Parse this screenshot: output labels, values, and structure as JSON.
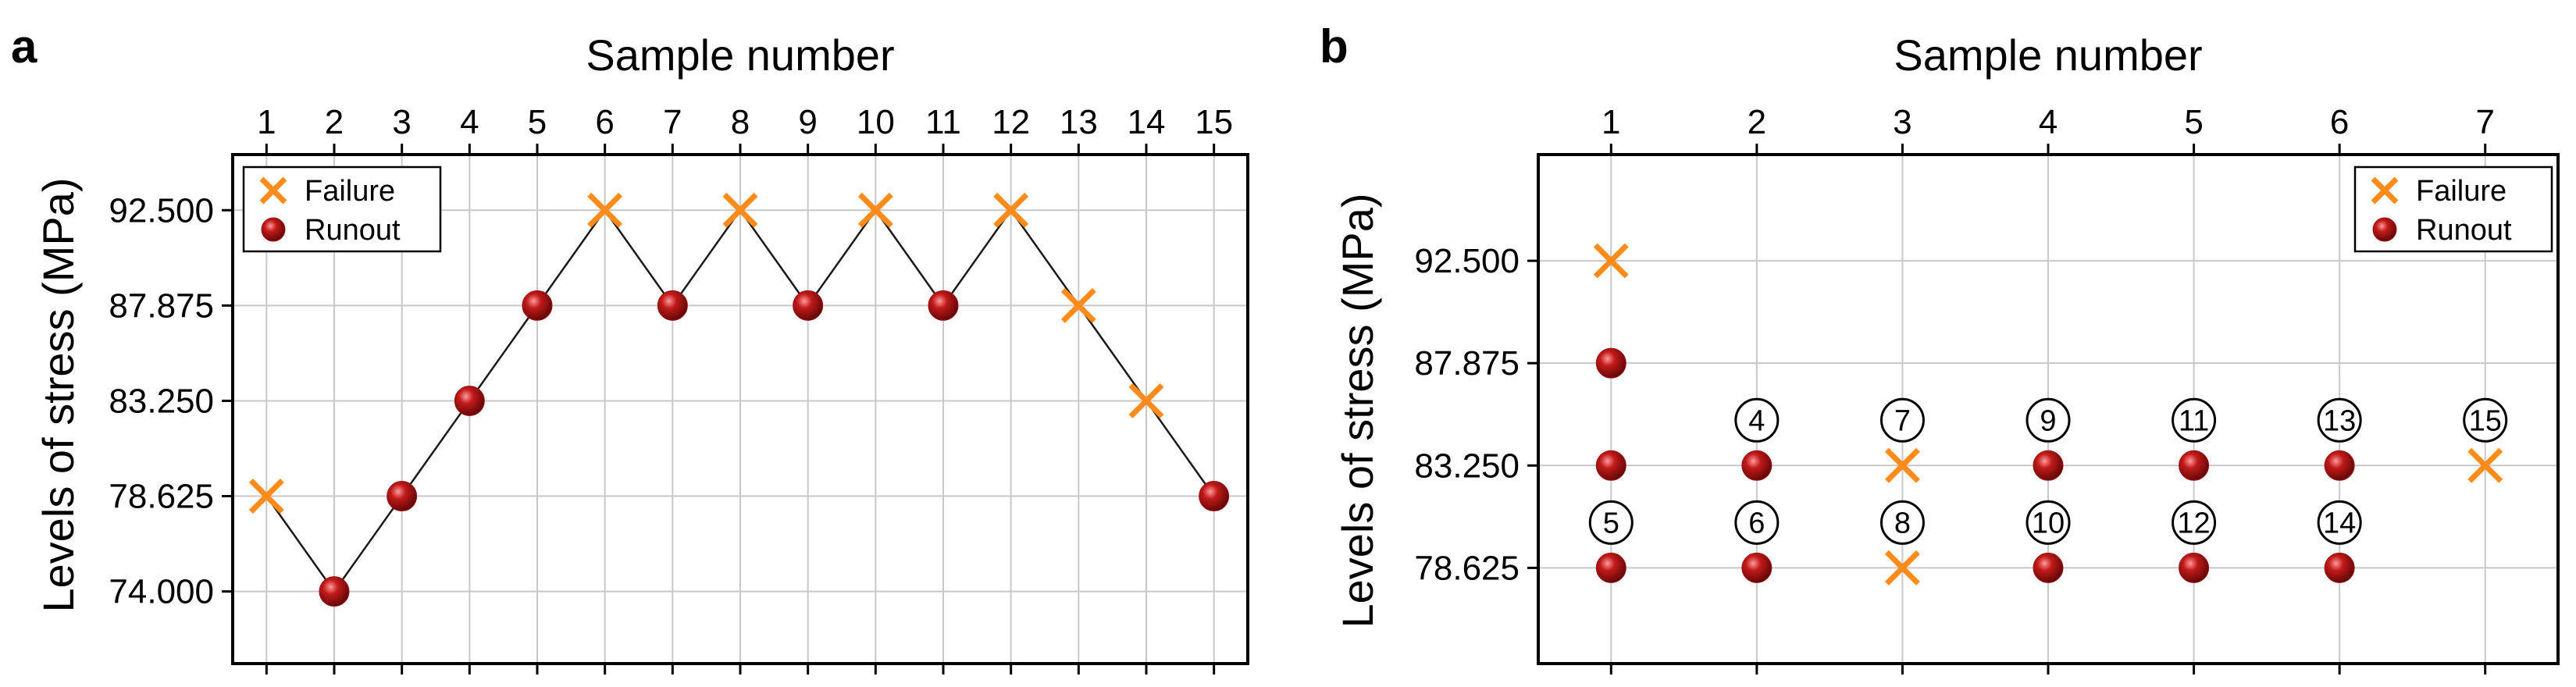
{
  "colors": {
    "failure": "#ff8c1a",
    "runout": "#9e0f0f",
    "runout_highlight": "#ff9a9a",
    "grid": "#c8c8c8",
    "line": "#1a1a1a"
  },
  "panels": [
    {
      "letter": "a"
    },
    {
      "letter": "b"
    }
  ],
  "chart_data": [
    {
      "type": "scatter",
      "panel": "a",
      "xlabel": "Sample number",
      "ylabel": "Levels of stress (MPa)",
      "x_ticks": [
        "1",
        "2",
        "3",
        "4",
        "5",
        "6",
        "7",
        "8",
        "9",
        "10",
        "11",
        "12",
        "13",
        "14",
        "15"
      ],
      "y_ticks": [
        "74.000",
        "78.625",
        "83.250",
        "87.875",
        "92.500"
      ],
      "y_tick_values": [
        74.0,
        78.625,
        83.25,
        87.875,
        92.5
      ],
      "xlim": [
        0.5,
        15.5
      ],
      "ylim": [
        70.5,
        95.2
      ],
      "grid": true,
      "connect_points": true,
      "legend_position": "top-left",
      "legend": [
        {
          "label": "Failure",
          "marker": "x"
        },
        {
          "label": "Runout",
          "marker": "sphere"
        }
      ],
      "points": [
        {
          "x": 1,
          "y": 78.625,
          "type": "failure"
        },
        {
          "x": 2,
          "y": 74.0,
          "type": "runout"
        },
        {
          "x": 3,
          "y": 78.625,
          "type": "runout"
        },
        {
          "x": 4,
          "y": 83.25,
          "type": "runout"
        },
        {
          "x": 5,
          "y": 87.875,
          "type": "runout"
        },
        {
          "x": 6,
          "y": 92.5,
          "type": "failure"
        },
        {
          "x": 7,
          "y": 87.875,
          "type": "runout"
        },
        {
          "x": 8,
          "y": 92.5,
          "type": "failure"
        },
        {
          "x": 9,
          "y": 87.875,
          "type": "runout"
        },
        {
          "x": 10,
          "y": 92.5,
          "type": "failure"
        },
        {
          "x": 11,
          "y": 87.875,
          "type": "runout"
        },
        {
          "x": 12,
          "y": 92.5,
          "type": "failure"
        },
        {
          "x": 13,
          "y": 87.875,
          "type": "failure"
        },
        {
          "x": 14,
          "y": 83.25,
          "type": "failure"
        },
        {
          "x": 15,
          "y": 78.625,
          "type": "runout"
        }
      ]
    },
    {
      "type": "scatter",
      "panel": "b",
      "xlabel": "Sample number",
      "ylabel": "Levels of stress (MPa)",
      "x_ticks": [
        "1",
        "2",
        "3",
        "4",
        "5",
        "6",
        "7"
      ],
      "y_ticks": [
        "78.625",
        "83.250",
        "87.875",
        "92.500"
      ],
      "y_tick_values": [
        78.625,
        83.25,
        87.875,
        92.5
      ],
      "xlim": [
        0.5,
        7.5
      ],
      "ylim": [
        74.3,
        97.3
      ],
      "grid": true,
      "connect_points": false,
      "legend_position": "top-right",
      "legend": [
        {
          "label": "Failure",
          "marker": "x"
        },
        {
          "label": "Runout",
          "marker": "sphere"
        }
      ],
      "points": [
        {
          "x": 1,
          "y": 92.5,
          "type": "failure"
        },
        {
          "x": 1,
          "y": 87.875,
          "type": "runout"
        },
        {
          "x": 1,
          "y": 83.25,
          "type": "runout"
        },
        {
          "x": 1,
          "y": 78.625,
          "type": "runout"
        },
        {
          "x": 2,
          "y": 83.25,
          "type": "runout"
        },
        {
          "x": 2,
          "y": 78.625,
          "type": "runout"
        },
        {
          "x": 3,
          "y": 83.25,
          "type": "failure"
        },
        {
          "x": 3,
          "y": 78.625,
          "type": "failure"
        },
        {
          "x": 4,
          "y": 83.25,
          "type": "runout"
        },
        {
          "x": 4,
          "y": 78.625,
          "type": "runout"
        },
        {
          "x": 5,
          "y": 83.25,
          "type": "runout"
        },
        {
          "x": 5,
          "y": 78.625,
          "type": "runout"
        },
        {
          "x": 6,
          "y": 83.25,
          "type": "runout"
        },
        {
          "x": 6,
          "y": 78.625,
          "type": "runout"
        },
        {
          "x": 7,
          "y": 83.25,
          "type": "failure"
        }
      ],
      "annotations": [
        {
          "x": 1,
          "y": 78.625,
          "text": "5"
        },
        {
          "x": 2,
          "y": 83.25,
          "text": "4"
        },
        {
          "x": 2,
          "y": 78.625,
          "text": "6"
        },
        {
          "x": 3,
          "y": 83.25,
          "text": "7"
        },
        {
          "x": 3,
          "y": 78.625,
          "text": "8"
        },
        {
          "x": 4,
          "y": 83.25,
          "text": "9"
        },
        {
          "x": 4,
          "y": 78.625,
          "text": "10"
        },
        {
          "x": 5,
          "y": 83.25,
          "text": "11"
        },
        {
          "x": 5,
          "y": 78.625,
          "text": "12"
        },
        {
          "x": 6,
          "y": 83.25,
          "text": "13"
        },
        {
          "x": 6,
          "y": 78.625,
          "text": "14"
        },
        {
          "x": 7,
          "y": 83.25,
          "text": "15"
        }
      ]
    }
  ]
}
